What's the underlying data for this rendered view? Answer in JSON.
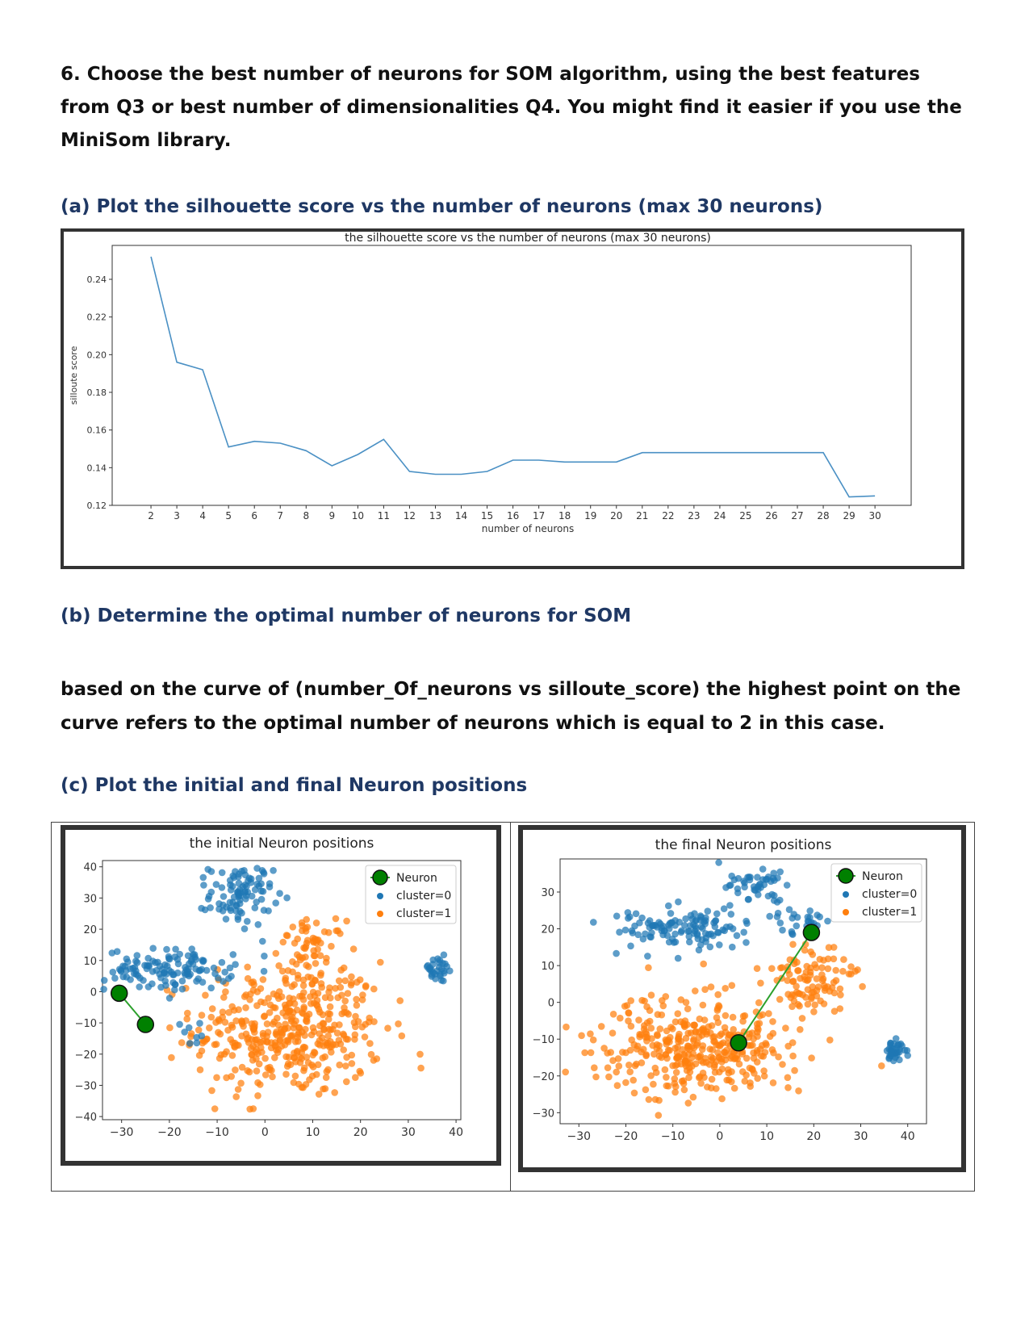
{
  "question": "6. Choose the best number of neurons for SOM algorithm, using the best features from Q3 or best number of dimensionalities Q4. You might find it easier if you use the MiniSom library.",
  "part_a": "(a) Plot the silhouette score vs the number of neurons (max 30 neurons)",
  "part_b": "(b) Determine the optimal number of neurons for SOM",
  "answer_b": "based on the curve of (number_Of_neurons vs silloute_score) the highest point on the curve refers to the optimal number of neurons which is equal to 2 in this case.",
  "part_c": "(c) Plot the initial and final Neuron positions",
  "colors": {
    "line": "#4a90c4",
    "cluster0": "#1f77b4",
    "cluster1": "#ff7f0e",
    "neuron": "#008000",
    "link": "#2ca02c"
  },
  "chart_data": [
    {
      "type": "line",
      "title": "the silhouette score vs the number of neurons (max 30 neurons)",
      "xlabel": "number of neurons",
      "ylabel": "silloute score",
      "x": [
        2,
        3,
        4,
        5,
        6,
        7,
        8,
        9,
        10,
        11,
        12,
        13,
        14,
        15,
        16,
        17,
        18,
        19,
        20,
        21,
        22,
        23,
        24,
        25,
        26,
        27,
        28,
        29,
        30
      ],
      "values": [
        0.252,
        0.196,
        0.192,
        0.151,
        0.154,
        0.153,
        0.149,
        0.141,
        0.147,
        0.155,
        0.138,
        0.1365,
        0.1365,
        0.138,
        0.144,
        0.144,
        0.143,
        0.143,
        0.143,
        0.148,
        0.148,
        0.148,
        0.148,
        0.148,
        0.148,
        0.148,
        0.148,
        0.1245,
        0.125
      ],
      "xticks": [
        "2",
        "3",
        "4",
        "5",
        "6",
        "7",
        "8",
        "9",
        "10",
        "11",
        "12",
        "13",
        "14",
        "15",
        "16",
        "17",
        "18",
        "19",
        "20",
        "21",
        "22",
        "23",
        "24",
        "25",
        "26",
        "27",
        "28",
        "29",
        "30"
      ],
      "yticks": [
        "0.12",
        "0.14",
        "0.16",
        "0.18",
        "0.20",
        "0.22",
        "0.24"
      ],
      "xlim": [
        0.5,
        31.4
      ],
      "ylim": [
        0.12,
        0.258
      ],
      "grid": false
    },
    {
      "type": "scatter",
      "title": "the initial  Neuron positions",
      "xticks": [
        "−30",
        "−20",
        "−10",
        "0",
        "10",
        "20",
        "30",
        "40"
      ],
      "yticks": [
        "−40",
        "−30",
        "−20",
        "−10",
        "0",
        "10",
        "20",
        "30",
        "40"
      ],
      "xlim": [
        -34,
        41
      ],
      "ylim": [
        -41,
        42
      ],
      "legend": [
        "Neuron",
        "cluster=0",
        "cluster=1"
      ],
      "legend_position": "top-right",
      "neurons": [
        {
          "x": -30.5,
          "y": -0.5
        },
        {
          "x": -25,
          "y": -10.5
        }
      ],
      "cluster0_regions": [
        {
          "cx": -20,
          "cy": 7,
          "rx": 12,
          "ry": 6,
          "n": 120
        },
        {
          "cx": -5,
          "cy": 31,
          "rx": 6,
          "ry": 9,
          "n": 95
        },
        {
          "cx": 36,
          "cy": 7,
          "rx": 3.5,
          "ry": 4,
          "n": 30
        },
        {
          "cx": -15,
          "cy": -12,
          "rx": 4,
          "ry": 5,
          "n": 8
        }
      ],
      "cluster1_regions": [
        {
          "cx": 5,
          "cy": -12,
          "rx": 18,
          "ry": 20,
          "n": 430
        },
        {
          "cx": 10,
          "cy": 15,
          "rx": 6,
          "ry": 7,
          "n": 50
        }
      ]
    },
    {
      "type": "scatter",
      "title": "the final Neuron positions",
      "xticks": [
        "−30",
        "−20",
        "−10",
        "0",
        "10",
        "20",
        "30",
        "40"
      ],
      "yticks": [
        "−30",
        "−20",
        "−10",
        "0",
        "10",
        "20",
        "30"
      ],
      "xlim": [
        -34,
        44
      ],
      "ylim": [
        -33,
        39
      ],
      "legend": [
        "Neuron",
        "cluster=0",
        "cluster=1"
      ],
      "legend_position": "top-right",
      "neurons": [
        {
          "x": 4,
          "y": -11
        },
        {
          "x": 19.5,
          "y": 19
        }
      ],
      "cluster0_regions": [
        {
          "cx": -8,
          "cy": 20,
          "rx": 13,
          "ry": 5,
          "n": 120
        },
        {
          "cx": 8,
          "cy": 32,
          "rx": 6,
          "ry": 4,
          "n": 45
        },
        {
          "cx": 16,
          "cy": 22,
          "rx": 5,
          "ry": 4,
          "n": 30
        },
        {
          "cx": 37,
          "cy": -13,
          "rx": 3,
          "ry": 3.5,
          "n": 35
        }
      ],
      "cluster1_regions": [
        {
          "cx": -5,
          "cy": -12,
          "rx": 19,
          "ry": 12,
          "n": 380
        },
        {
          "cx": 20,
          "cy": 6,
          "rx": 8,
          "ry": 8,
          "n": 100
        }
      ]
    }
  ]
}
